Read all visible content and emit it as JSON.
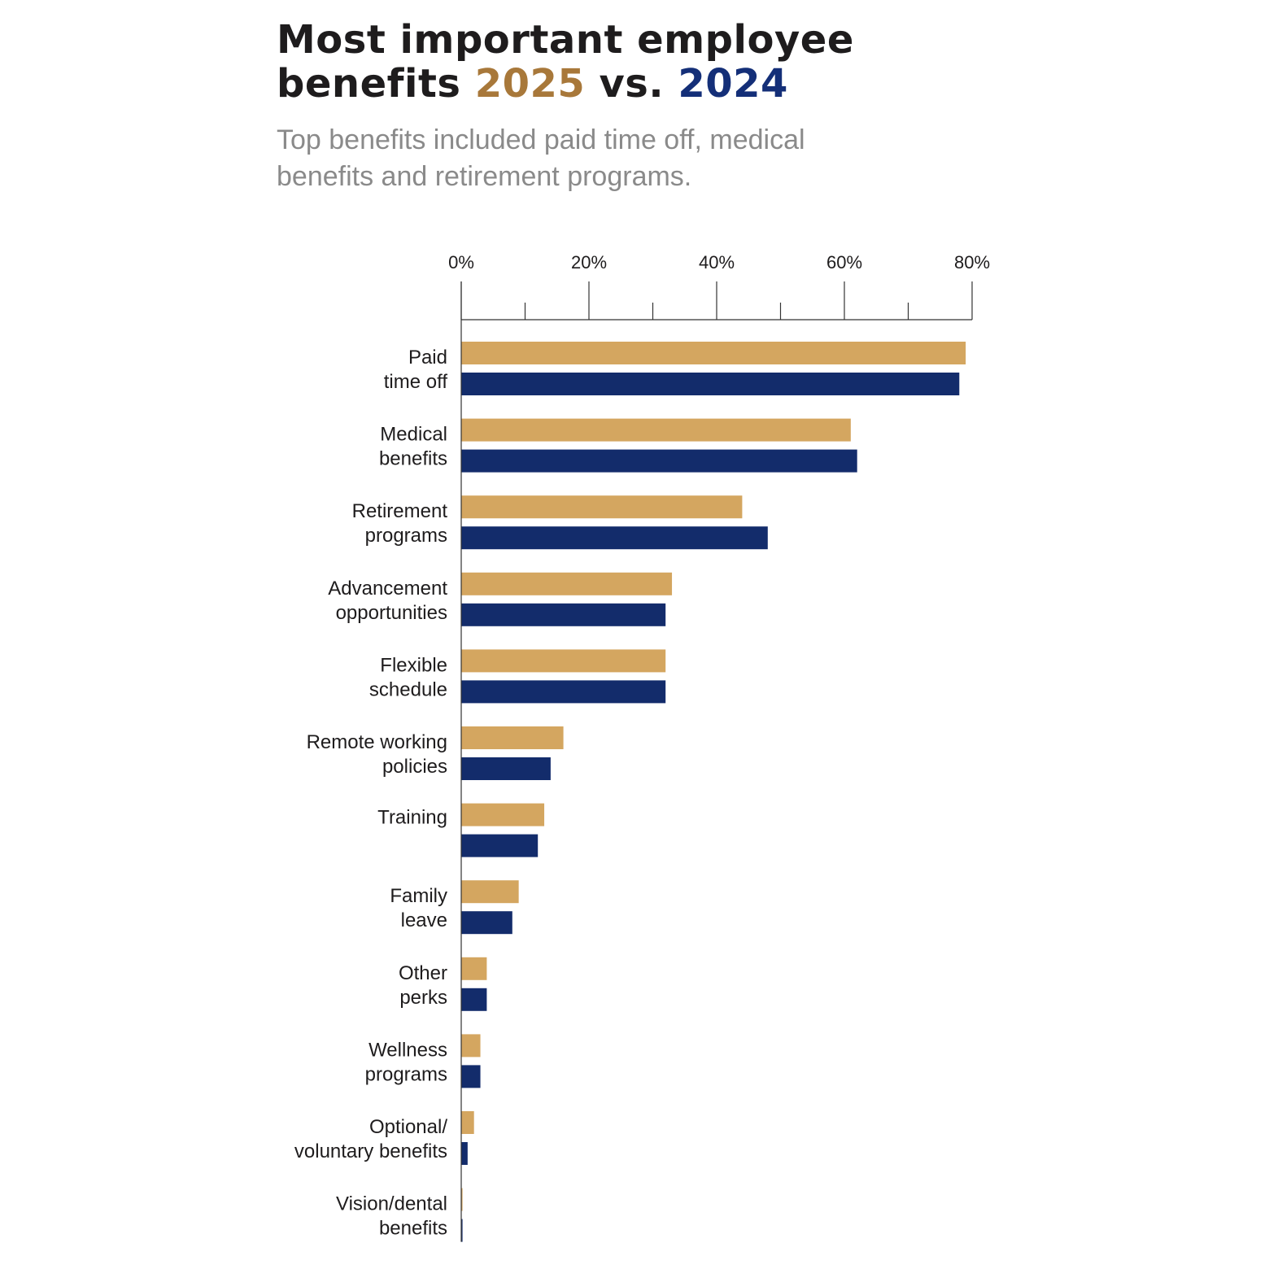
{
  "header": {
    "title_line1": "Most important employee",
    "title_line2_prefix": "benefits ",
    "title_year_a": "2025",
    "title_vs": " vs. ",
    "title_year_b": "2024",
    "subtitle_line1": "Top benefits included paid time off, medical",
    "subtitle_line2": "benefits and retirement programs."
  },
  "colors": {
    "series_2025": "#D4A660",
    "series_2024": "#132C6B",
    "title_2025": "#A8783A",
    "title_2024": "#142F78",
    "axis": "#333333",
    "text": "#1e1c1d"
  },
  "chart_data": {
    "type": "bar",
    "orientation": "horizontal",
    "title": "Most important employee benefits 2025 vs. 2024",
    "subtitle": "Top benefits included paid time off, medical benefits and retirement programs.",
    "xlabel": "",
    "ylabel": "",
    "xlim": [
      0,
      80
    ],
    "x_ticks": [
      0,
      20,
      40,
      60,
      80
    ],
    "x_tick_labels": [
      "0%",
      "20%",
      "40%",
      "60%",
      "80%"
    ],
    "x_minor_ticks": [
      10,
      30,
      50,
      70
    ],
    "axis_position": "top",
    "grid": false,
    "legend": "none (years color-coded in title)",
    "categories": [
      [
        "Paid",
        "time off"
      ],
      [
        "Medical",
        "benefits"
      ],
      [
        "Retirement",
        "programs"
      ],
      [
        "Advancement",
        "opportunities"
      ],
      [
        "Flexible",
        "schedule"
      ],
      [
        "Remote working",
        "policies"
      ],
      [
        "Training"
      ],
      [
        "Family",
        "leave"
      ],
      [
        "Other",
        "perks"
      ],
      [
        "Wellness",
        "programs"
      ],
      [
        "Optional/",
        "voluntary benefits"
      ],
      [
        "Vision/dental",
        "benefits"
      ]
    ],
    "series": [
      {
        "name": "2025",
        "values": [
          79,
          61,
          44,
          33,
          32,
          16,
          13,
          9,
          4,
          3,
          2,
          0.2
        ]
      },
      {
        "name": "2024",
        "values": [
          78,
          62,
          48,
          32,
          32,
          14,
          12,
          8,
          4,
          3,
          1,
          0.2
        ]
      }
    ]
  }
}
